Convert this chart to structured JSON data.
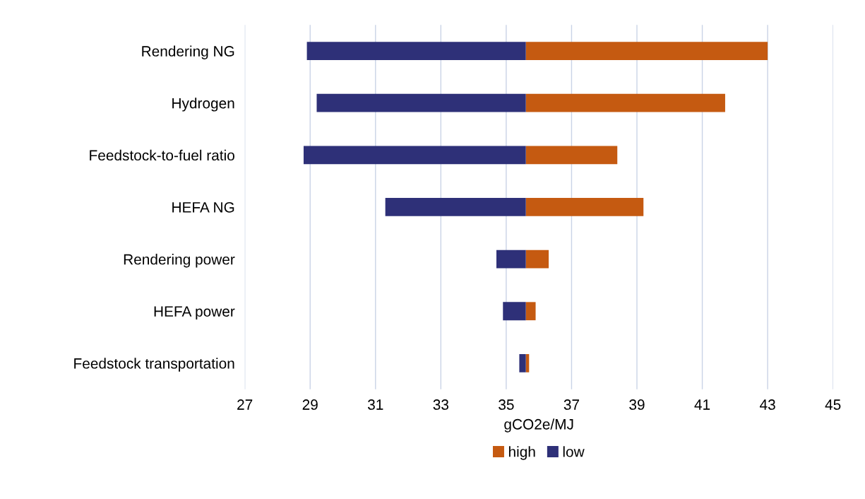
{
  "chart_data": {
    "type": "bar",
    "orientation": "horizontal",
    "xlabel": "gCO2e/MJ",
    "categories": [
      "Rendering NG",
      "Hydrogen",
      "Feedstock-to-fuel ratio",
      "HEFA NG",
      "Rendering power",
      "HEFA power",
      "Feedstock transportation"
    ],
    "series": [
      {
        "name": "high",
        "color": "#c55a11",
        "base": [
          35.6,
          35.6,
          35.6,
          35.6,
          35.6,
          35.6,
          35.6
        ],
        "values": [
          7.4,
          6.1,
          2.8,
          3.6,
          0.7,
          0.3,
          0.1
        ]
      },
      {
        "name": "low",
        "color": "#2e3078",
        "base": [
          28.9,
          29.2,
          28.8,
          31.3,
          34.7,
          34.9,
          35.4
        ],
        "values": [
          6.7,
          6.4,
          6.8,
          4.3,
          0.9,
          0.7,
          0.2
        ]
      }
    ],
    "xlim": [
      27,
      45
    ],
    "xticks": [
      27,
      29,
      31,
      33,
      35,
      37,
      39,
      41,
      43,
      45
    ],
    "grid": "x",
    "legend": "bottom"
  }
}
